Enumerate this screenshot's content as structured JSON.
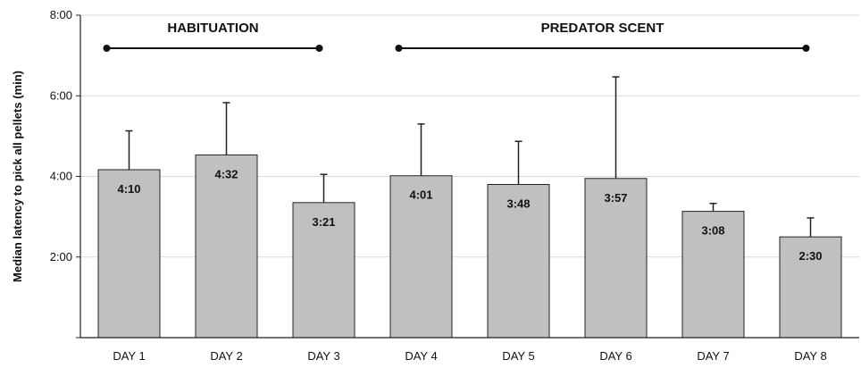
{
  "chart_data": {
    "type": "bar",
    "ylabel": "Median latency to pick all pellets (min)",
    "yunit": "min",
    "ylim": [
      0,
      8
    ],
    "yticks": [
      {
        "value": 2,
        "label": "2:00"
      },
      {
        "value": 4,
        "label": "4:00"
      },
      {
        "value": 6,
        "label": "6:00"
      },
      {
        "value": 8,
        "label": "8:00"
      }
    ],
    "grid": true,
    "categories": [
      "DAY 1",
      "DAY 2",
      "DAY 3",
      "DAY 4",
      "DAY 5",
      "DAY 6",
      "DAY 7",
      "DAY 8"
    ],
    "values": [
      4.1667,
      4.5333,
      3.35,
      4.0167,
      3.8,
      3.95,
      3.1333,
      2.5
    ],
    "value_labels": [
      "4:10",
      "4:32",
      "3:21",
      "4:01",
      "3:48",
      "3:57",
      "3:08",
      "2:30"
    ],
    "error_upper": [
      5.13,
      5.83,
      4.05,
      5.3,
      4.87,
      6.47,
      3.33,
      2.97
    ],
    "phases": [
      {
        "label": "HABITUATION",
        "start": 0,
        "end": 2
      },
      {
        "label": "PREDATOR SCENT",
        "start": 3,
        "end": 7
      }
    ],
    "colors": {
      "bar_fill": "#c0c0c0",
      "bar_stroke": "#222222",
      "grid": "#d9d9d9",
      "axis": "#222222"
    }
  }
}
